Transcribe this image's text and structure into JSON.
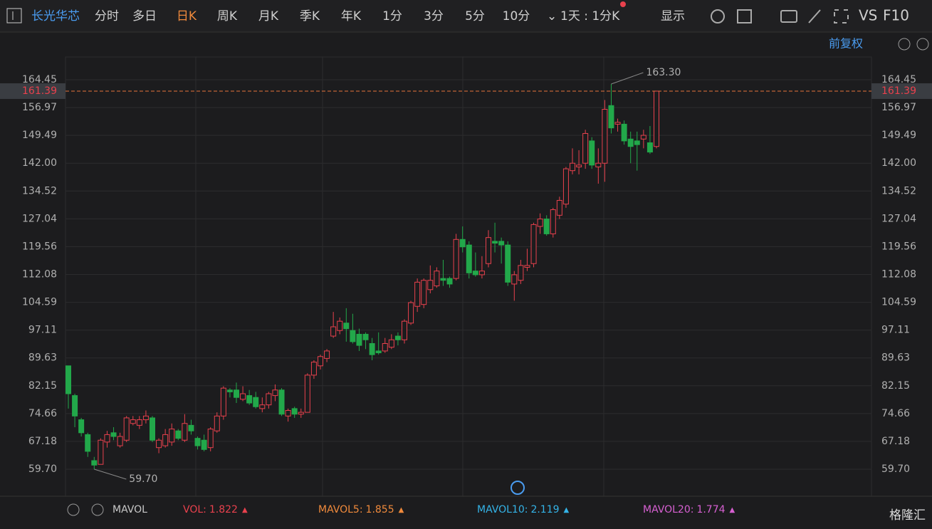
{
  "toolbar": {
    "stock": "长光华芯",
    "tabs": [
      "分时",
      "多日",
      "日K",
      "周K",
      "月K",
      "季K",
      "年K",
      "1分",
      "3分",
      "5分",
      "10分"
    ],
    "interval": "1天 : 1分K",
    "display": "显示",
    "vs": "VS",
    "f10": "F10",
    "adjust": "前复权"
  },
  "chart_data": {
    "type": "candlestick",
    "open": [
      87.5,
      79.5,
      73,
      69,
      62,
      61,
      67,
      69.5,
      66,
      67.5,
      72,
      71.5,
      73,
      73.5,
      65.5,
      66,
      67,
      70,
      67.5,
      71.5,
      68,
      67.5,
      65.5,
      70,
      74,
      81,
      81,
      78.5,
      79.5,
      79,
      76,
      77,
      79.5,
      81,
      74,
      76,
      74.5,
      75,
      85,
      87.5,
      89.5,
      95.5,
      97,
      99,
      97,
      96,
      96,
      93.5,
      91.5,
      91.5,
      92.5,
      95.5,
      94.5,
      99,
      103.5,
      104,
      108,
      109,
      111,
      111,
      111,
      121.5,
      120,
      113,
      112,
      115,
      121,
      121,
      120,
      109.5,
      110.5,
      114,
      115,
      125,
      127,
      123,
      128,
      131,
      140,
      141,
      142,
      148,
      141,
      142,
      157.5,
      152.5,
      152.5,
      148.5,
      148,
      148.5,
      147.5,
      146.5
    ],
    "high": [
      87.5,
      80,
      73.5,
      69.5,
      63,
      68,
      70,
      71,
      69.5,
      74,
      74,
      74,
      75.5,
      74,
      68,
      70.5,
      72,
      70.5,
      74.5,
      73,
      68.5,
      69,
      71,
      75,
      82,
      81.5,
      83,
      82,
      81,
      80.5,
      79,
      80.5,
      82.5,
      81.5,
      76,
      76.5,
      76,
      85.5,
      89,
      90.5,
      92,
      102,
      100.5,
      103,
      101.5,
      97.5,
      96.5,
      95,
      96.5,
      95,
      96,
      96.5,
      100,
      105,
      111,
      111,
      114.5,
      114,
      116,
      111.5,
      123,
      125,
      121,
      118,
      117,
      124,
      126,
      122,
      121,
      113,
      116,
      119,
      126,
      128.5,
      128,
      130,
      133,
      141,
      146,
      145.5,
      151,
      149,
      146,
      159,
      163.3,
      154,
      153.5,
      150.5,
      150.5,
      151,
      152,
      161.5
    ],
    "low": [
      76,
      71,
      68.5,
      63,
      59.7,
      61,
      65.5,
      67.5,
      65.5,
      67,
      71.5,
      70.5,
      72,
      67,
      64,
      65.5,
      66,
      67.5,
      67,
      69,
      65,
      64.5,
      64.5,
      69.5,
      73,
      79,
      77.5,
      78,
      77,
      76,
      75,
      76,
      78,
      74,
      72.5,
      73.5,
      73.5,
      75,
      84,
      86.5,
      88.5,
      95,
      96,
      94,
      93.5,
      91.5,
      92,
      89,
      90.5,
      91,
      92,
      93,
      93.5,
      98.5,
      102,
      103,
      107,
      108.5,
      109,
      108.5,
      110.5,
      118,
      111,
      111.5,
      111,
      114,
      118,
      115,
      109,
      105,
      109.5,
      113,
      114,
      123,
      122.5,
      122,
      127,
      130,
      139,
      139,
      140.5,
      140.5,
      136.5,
      137,
      150,
      150.5,
      147,
      142,
      140,
      146,
      144.5,
      146
    ],
    "close": [
      80,
      74,
      69.5,
      64.5,
      60.8,
      67.5,
      69,
      68.5,
      68.5,
      73.5,
      73,
      73,
      74,
      67.5,
      67.5,
      69,
      70.5,
      68,
      72,
      70,
      66,
      65,
      70.5,
      74,
      81.5,
      80.5,
      79,
      80,
      77.5,
      76.5,
      77,
      80,
      81,
      74.5,
      75.5,
      74.5,
      75,
      85,
      88.5,
      90,
      91.5,
      98,
      99.5,
      97.5,
      94,
      93,
      94.5,
      90.5,
      91,
      93.5,
      94.5,
      94.5,
      99.5,
      104.5,
      110,
      110.5,
      110.5,
      113,
      110.5,
      109.5,
      121.5,
      119.5,
      112.5,
      112,
      113,
      122,
      120.5,
      120,
      110,
      112,
      114.5,
      114.5,
      125.5,
      127,
      123,
      129.5,
      132,
      140.5,
      142,
      141.5,
      150,
      141.5,
      142,
      156.5,
      151.5,
      153,
      148,
      146.5,
      147,
      149.5,
      145,
      161.39
    ],
    "up_color": "#e8414d",
    "down_color": "#22a84a",
    "ylim": [
      52.42,
      170.58
    ],
    "yticks": [
      164.45,
      156.97,
      149.49,
      {
        "value": 142,
        "label": "142.00"
      },
      134.52,
      127.04,
      119.56,
      112.08,
      104.59,
      97.11,
      89.63,
      82.15,
      74.66,
      67.18,
      {
        "value": 59.7,
        "label": "59.70"
      }
    ],
    "last_price": 161.39,
    "annotations": [
      {
        "value": 163.3,
        "label": "163.30",
        "index": 84
      },
      {
        "value": 59.7,
        "label": "59.70",
        "index": 4
      }
    ],
    "grid": true
  },
  "volume_bar": {
    "selector": "MAVOL",
    "indicators": [
      {
        "name": "VOL:",
        "value": 1.822,
        "color": "#e8414d"
      },
      {
        "name": "MAVOL5:",
        "value": 1.855,
        "color": "#f08a3c"
      },
      {
        "name": "MAVOL10:",
        "value": 2.119,
        "color": "#34b4e8"
      },
      {
        "name": "MAVOL20:",
        "value": 1.774,
        "color": "#d760d2"
      }
    ]
  },
  "watermark": "格隆汇"
}
